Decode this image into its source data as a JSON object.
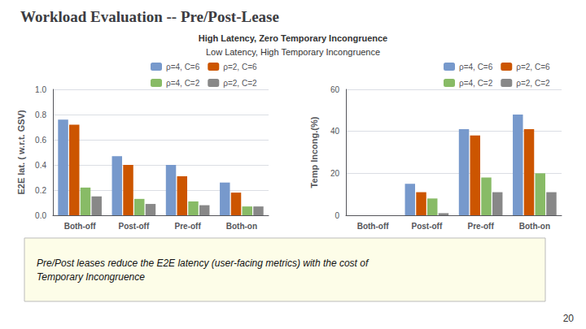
{
  "title": "Workload Evaluation -- Pre/Post-Lease",
  "subtitle": [
    "High Latency, Zero Temporary Incongruence",
    "Low Latency, High Temporary Incongruence"
  ],
  "annotations": [
    "Pre/Post leases reduce the E2E latency (user-facing metrics) with the cost of\nTemporary Incongruence",
    "20"
  ],
  "chart_data": [
    {
      "type": "bar",
      "ylabel": "E2E lat. ( w.r.t. GSV)",
      "categories": [
        "Both-off",
        "Post-off",
        "Pre-off",
        "Both-on"
      ],
      "series": [
        {
          "name": "ρ=4, C=6",
          "color": "#7799CC",
          "values": [
            0.76,
            0.47,
            0.4,
            0.26
          ]
        },
        {
          "name": "ρ=2, C=6",
          "color": "#CC5500",
          "values": [
            0.72,
            0.4,
            0.31,
            0.18
          ]
        },
        {
          "name": "ρ=4, C=2",
          "color": "#88BB66",
          "values": [
            0.22,
            0.13,
            0.11,
            0.07
          ]
        },
        {
          "name": "ρ=2, C=2",
          "color": "#888888",
          "values": [
            0.15,
            0.09,
            0.08,
            0.07
          ]
        }
      ],
      "ylim": [
        0.0,
        1.0
      ],
      "yticks": [
        {
          "value": 0.0,
          "label": "0.0"
        },
        0.2,
        0.4,
        0.6,
        0.8,
        {
          "value": 1.0,
          "label": "1.0"
        }
      ],
      "grid": true,
      "legend": "upper right"
    },
    {
      "type": "bar",
      "ylabel": "Temp Incong.(%)",
      "categories": [
        "Both-off",
        "Post-off",
        "Pre-off",
        "Both-on"
      ],
      "series": [
        {
          "name": "ρ=4, C=6",
          "color": "#7799CC",
          "values": [
            0,
            15,
            41,
            48
          ]
        },
        {
          "name": "ρ=2, C=6",
          "color": "#CC5500",
          "values": [
            0,
            11,
            38,
            41
          ]
        },
        {
          "name": "ρ=4, C=2",
          "color": "#88BB66",
          "values": [
            0,
            8,
            18,
            20
          ]
        },
        {
          "name": "ρ=2, C=2",
          "color": "#888888",
          "values": [
            0,
            1,
            11,
            11
          ]
        }
      ],
      "ylim": [
        0,
        60
      ],
      "yticks": [
        0,
        20,
        40,
        60
      ],
      "grid": true,
      "legend": "upper right"
    }
  ]
}
